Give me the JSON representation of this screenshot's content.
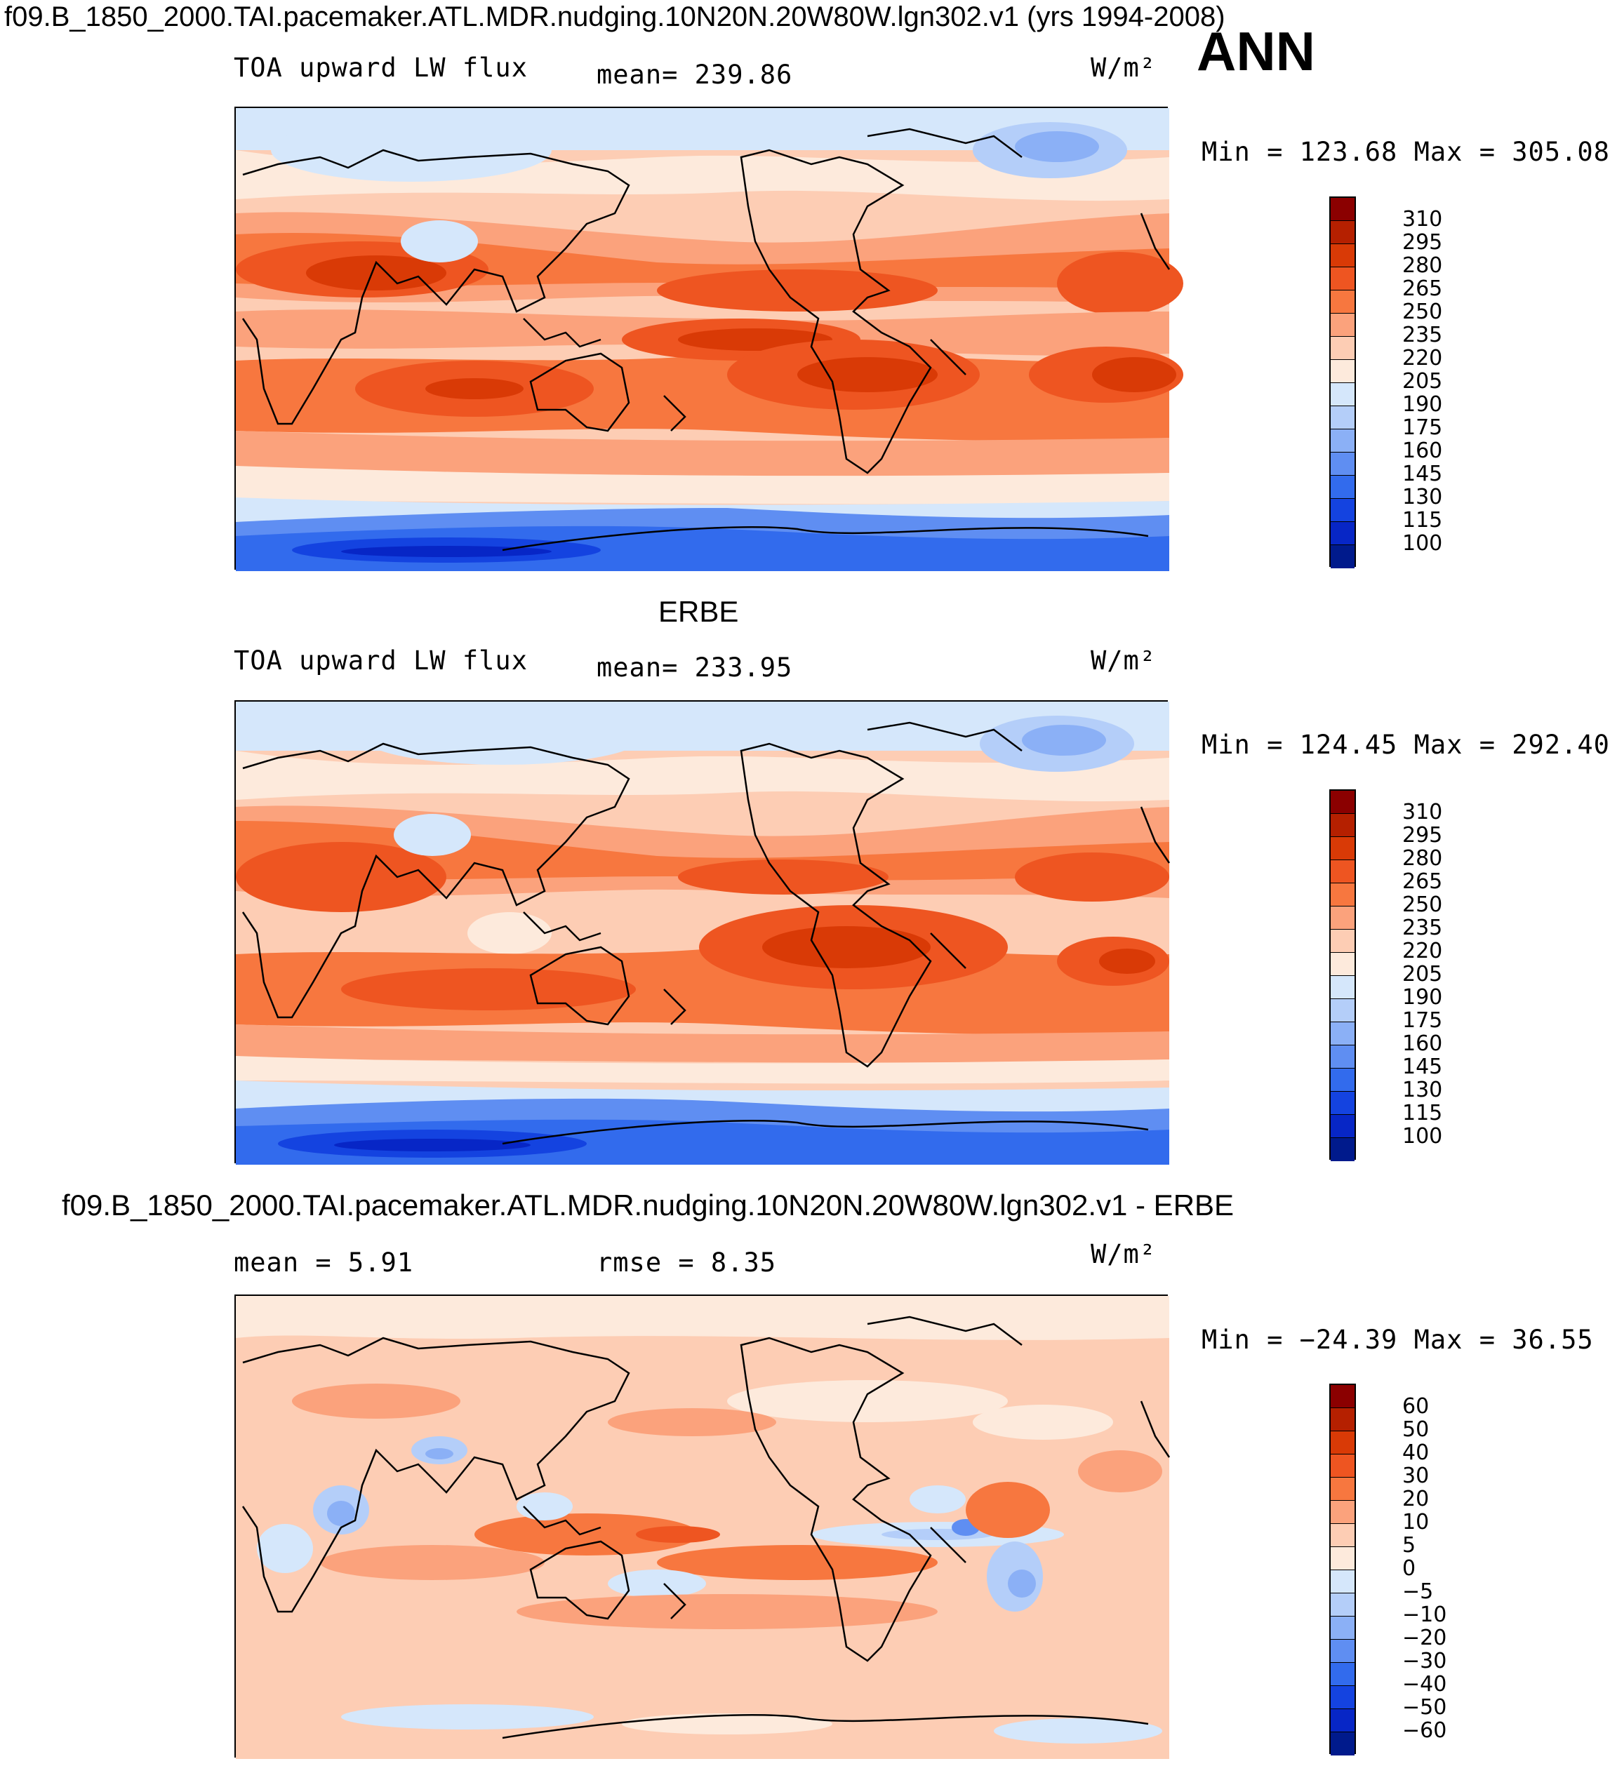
{
  "header": {
    "title": "f09.B_1850_2000.TAI.pacemaker.ATL.MDR.nudging.10N20N.20W80W.lgn302.v1 (yrs 1994-2008)",
    "season": "ANN"
  },
  "panels": [
    {
      "heading": "",
      "variable": "TOA upward LW flux",
      "stat": "mean=  239.86",
      "stat2": "",
      "units": "W/m²",
      "minmax": "Min  =  123.68  Max  =  305.08",
      "colorbar_labels": [
        "310",
        "295",
        "280",
        "265",
        "250",
        "235",
        "220",
        "205",
        "190",
        "175",
        "160",
        "145",
        "130",
        "115",
        "100"
      ],
      "colorbar_colors": [
        "#8b0000",
        "#b52000",
        "#d93a06",
        "#ee5521",
        "#f7773f",
        "#fba27c",
        "#fdcdb4",
        "#fdeadc",
        "#d5e7fb",
        "#b4cef9",
        "#8bb0f6",
        "#5f8ef2",
        "#326bed",
        "#1443e0",
        "#0726c6",
        "#001a8c"
      ]
    },
    {
      "heading": "ERBE",
      "variable": "TOA upward LW flux",
      "stat": "mean=  233.95",
      "stat2": "",
      "units": "W/m²",
      "minmax": "Min  =  124.45  Max  =  292.40",
      "colorbar_labels": [
        "310",
        "295",
        "280",
        "265",
        "250",
        "235",
        "220",
        "205",
        "190",
        "175",
        "160",
        "145",
        "130",
        "115",
        "100"
      ],
      "colorbar_colors": [
        "#8b0000",
        "#b52000",
        "#d93a06",
        "#ee5521",
        "#f7773f",
        "#fba27c",
        "#fdcdb4",
        "#fdeadc",
        "#d5e7fb",
        "#b4cef9",
        "#8bb0f6",
        "#5f8ef2",
        "#326bed",
        "#1443e0",
        "#0726c6",
        "#001a8c"
      ]
    },
    {
      "heading": "f09.B_1850_2000.TAI.pacemaker.ATL.MDR.nudging.10N20N.20W80W.lgn302.v1 - ERBE",
      "variable": "mean  =    5.91",
      "stat": "rmse  =    8.35",
      "stat2": "",
      "units": "W/m²",
      "minmax": "Min  =  −24.39  Max  =   36.55",
      "colorbar_labels": [
        "60",
        "50",
        "40",
        "30",
        "20",
        "10",
        "5",
        "0",
        "−5",
        "−10",
        "−20",
        "−30",
        "−40",
        "−50",
        "−60"
      ],
      "colorbar_colors": [
        "#8b0000",
        "#b52000",
        "#d93a06",
        "#ee5521",
        "#f7773f",
        "#fba27c",
        "#fdcdb4",
        "#fdeadc",
        "#d5e7fb",
        "#b4cef9",
        "#8bb0f6",
        "#5f8ef2",
        "#326bed",
        "#1443e0",
        "#0726c6",
        "#001a8c"
      ]
    }
  ]
}
